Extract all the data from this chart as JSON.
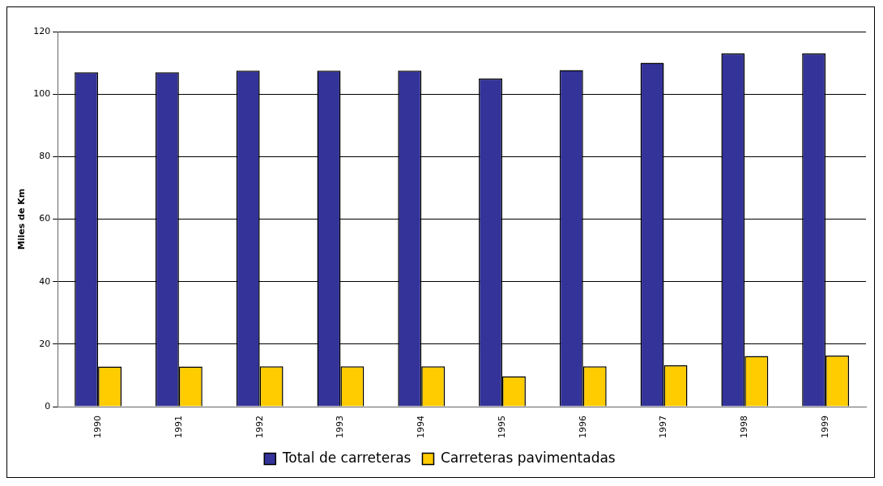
{
  "chart_data": {
    "type": "bar",
    "ylabel": "Miles de Km",
    "categories": [
      "1990",
      "1991",
      "1992",
      "1993",
      "1994",
      "1995",
      "1996",
      "1997",
      "1998",
      "1999"
    ],
    "series": [
      {
        "name": "Total de carreteras",
        "color": "#333399",
        "values": [
          107,
          107,
          107.5,
          107.5,
          107.5,
          105,
          107.7,
          110,
          113,
          113
        ]
      },
      {
        "name": "Carreteras pavimentadas",
        "color": "#ffcc00",
        "values": [
          12.8,
          12.8,
          12.9,
          12.9,
          12.9,
          9.7,
          12.9,
          13.2,
          16.2,
          16.3
        ]
      }
    ],
    "ylim": [
      0,
      120
    ],
    "yticks": [
      0,
      20,
      40,
      60,
      80,
      100,
      120
    ],
    "grid": "y",
    "legend": "bottom"
  }
}
